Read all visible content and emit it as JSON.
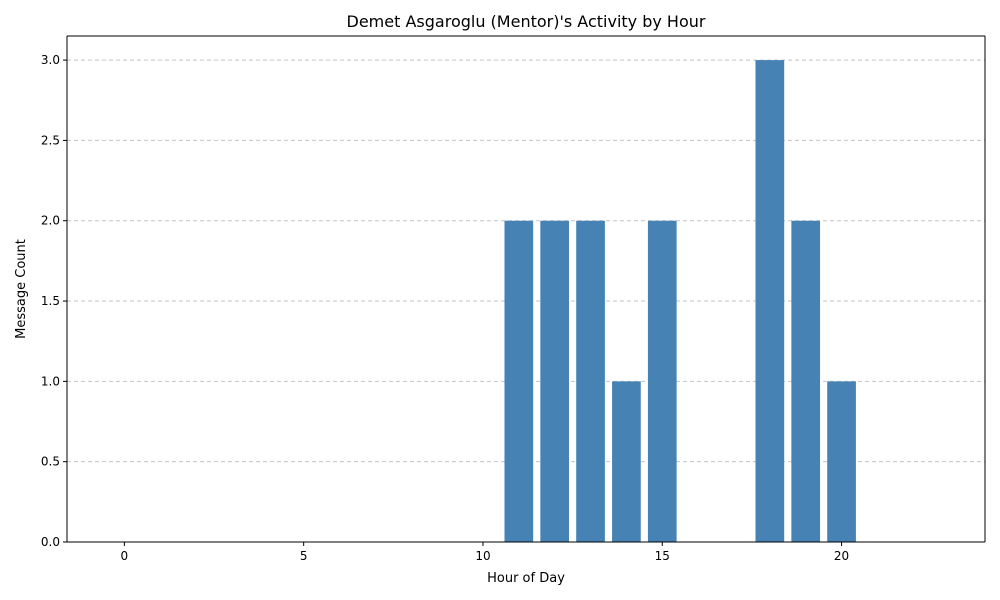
{
  "chart_data": {
    "type": "bar",
    "title": "Demet Asgaroglu (Mentor)'s Activity by Hour",
    "xlabel": "Hour of Day",
    "ylabel": "Message Count",
    "x": [
      11,
      12,
      13,
      14,
      15,
      18,
      19,
      20
    ],
    "values": [
      2,
      2,
      2,
      1,
      2,
      3,
      2,
      1
    ],
    "xlim": [
      -1.6,
      24.0
    ],
    "ylim": [
      0,
      3.15
    ],
    "xticks": [
      0,
      5,
      10,
      15,
      20
    ],
    "xtick_labels": [
      "0",
      "5",
      "10",
      "15",
      "20"
    ],
    "yticks": [
      0.0,
      0.5,
      1.0,
      1.5,
      2.0,
      2.5,
      3.0
    ],
    "ytick_labels": [
      "0.0",
      "0.5",
      "1.0",
      "1.5",
      "2.0",
      "2.5",
      "3.0"
    ],
    "grid": "y",
    "bar_color": "#4682b4"
  }
}
